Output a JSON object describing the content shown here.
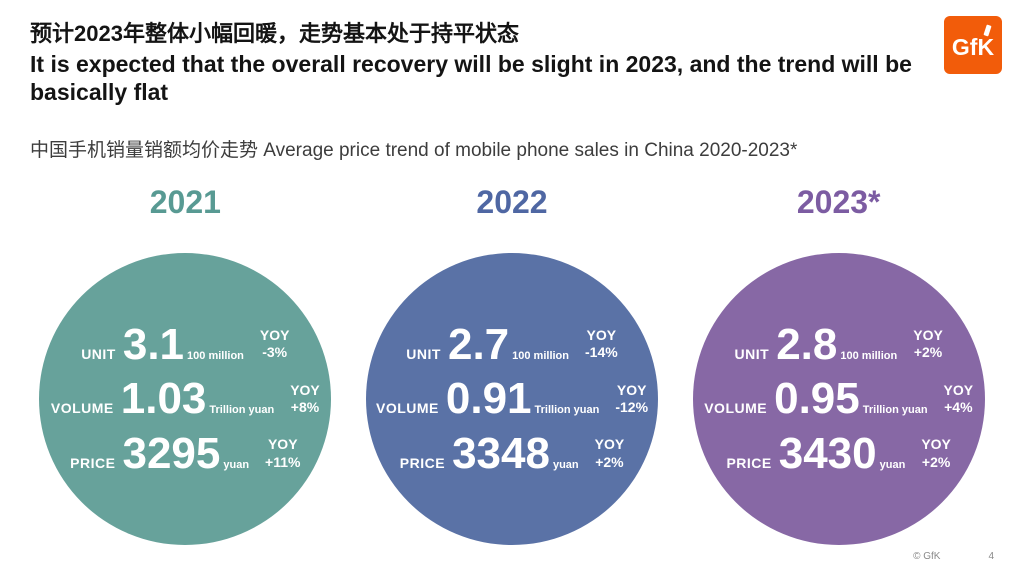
{
  "header": {
    "title_zh": "预计2023年整体小幅回暖，走势基本处于持平状态",
    "title_en": "It is expected that the overall recovery will be slight in 2023, and the trend will be basically flat",
    "subtitle": "中国手机销量销额均价走势 Average price trend of mobile phone sales in China 2020-2023*",
    "logo_text": "GfK"
  },
  "colors": {
    "teal": "#67A29B",
    "blue": "#5A72A6",
    "purple": "#8768A5",
    "logo_orange": "#F25C0A"
  },
  "circles": [
    {
      "year": "2021",
      "color": "#67A29B",
      "rows": [
        {
          "label": "UNIT",
          "value": "3.1",
          "unit": "100 million",
          "yoy_label": "YOY",
          "yoy_value": "-3%"
        },
        {
          "label": "VOLUME",
          "value": "1.03",
          "unit": "Trillion yuan",
          "yoy_label": "YOY",
          "yoy_value": "+8%"
        },
        {
          "label": "PRICE",
          "value": "3295",
          "unit": "yuan",
          "yoy_label": "YOY",
          "yoy_value": "+11%"
        }
      ]
    },
    {
      "year": "2022",
      "color": "#5A72A6",
      "rows": [
        {
          "label": "UNIT",
          "value": "2.7",
          "unit": "100 million",
          "yoy_label": "YOY",
          "yoy_value": "-14%"
        },
        {
          "label": "VOLUME",
          "value": "0.91",
          "unit": "Trillion yuan",
          "yoy_label": "YOY",
          "yoy_value": "-12%"
        },
        {
          "label": "PRICE",
          "value": "3348",
          "unit": "yuan",
          "yoy_label": "YOY",
          "yoy_value": "+2%"
        }
      ]
    },
    {
      "year": "2023*",
      "color": "#8768A5",
      "rows": [
        {
          "label": "UNIT",
          "value": "2.8",
          "unit": "100 million",
          "yoy_label": "YOY",
          "yoy_value": "+2%"
        },
        {
          "label": "VOLUME",
          "value": "0.95",
          "unit": "Trillion yuan",
          "yoy_label": "YOY",
          "yoy_value": "+4%"
        },
        {
          "label": "PRICE",
          "value": "3430",
          "unit": "yuan",
          "yoy_label": "YOY",
          "yoy_value": "+2%"
        }
      ]
    }
  ],
  "chart_data": {
    "type": "table",
    "title": "中国手机销量销额均价走势 Average price trend of mobile phone sales in China 2020-2023*",
    "categories": [
      "2021",
      "2022",
      "2023*"
    ],
    "series": [
      {
        "name": "Unit (100 million)",
        "values": [
          3.1,
          2.7,
          2.8
        ],
        "yoy": [
          "-3%",
          "-14%",
          "+2%"
        ]
      },
      {
        "name": "Volume (Trillion yuan)",
        "values": [
          1.03,
          0.91,
          0.95
        ],
        "yoy": [
          "+8%",
          "-12%",
          "+4%"
        ]
      },
      {
        "name": "Price (yuan)",
        "values": [
          3295,
          3348,
          3430
        ],
        "yoy": [
          "+11%",
          "+2%",
          "+2%"
        ]
      }
    ]
  },
  "footer": {
    "copyright": "© GfK",
    "page_number": "4"
  }
}
